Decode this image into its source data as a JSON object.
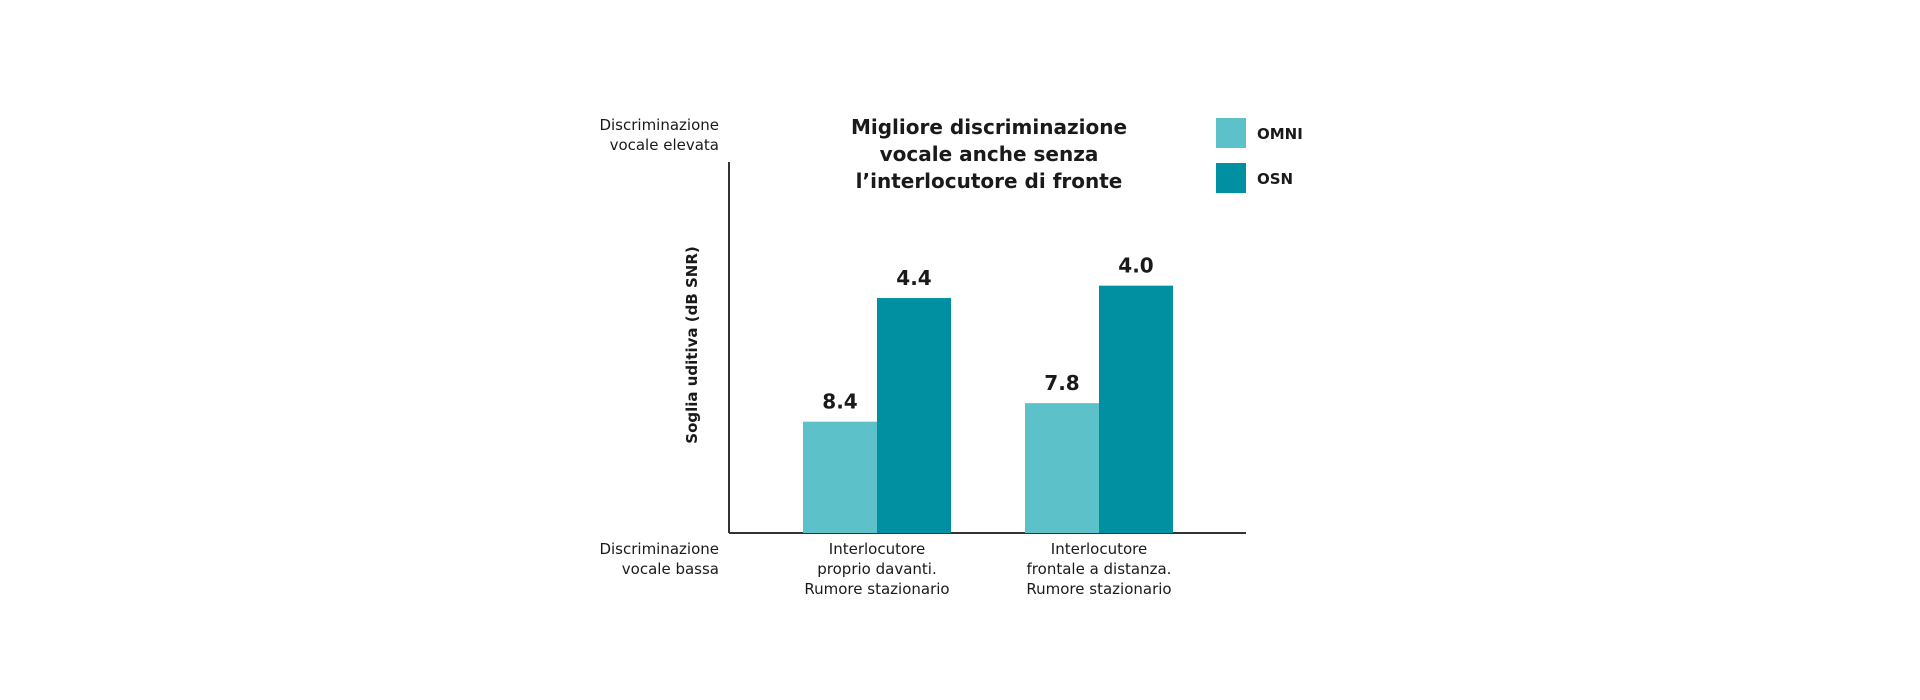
{
  "chart_data": {
    "type": "bar",
    "title_lines": [
      "Migliore discriminazione",
      "vocale anche senza",
      "l’interlocutore di fronte"
    ],
    "ylabel": "Soglia uditiva (dB SNR)",
    "y_top_label": [
      "Discriminazione",
      "vocale elevata"
    ],
    "y_bottom_label": [
      "Discriminazione",
      "vocale bassa"
    ],
    "y_axis_reversed": true,
    "ylim": [
      12,
      0
    ],
    "categories": [
      [
        "Interlocutore",
        "proprio davanti.",
        "Rumore stazionario"
      ],
      [
        "Interlocutore",
        "frontale a distanza.",
        "Rumore stazionario"
      ]
    ],
    "series": [
      {
        "name": "OMNI",
        "color": "#5cc1c8",
        "values": [
          8.4,
          7.8
        ],
        "value_labels": [
          "8.4",
          "7.8"
        ]
      },
      {
        "name": "OSN",
        "color": "#0090a1",
        "values": [
          4.4,
          4.0
        ],
        "value_labels": [
          "4.4",
          "4.0"
        ]
      }
    ],
    "legend_position": "top-right",
    "grid": false,
    "axis_color": "#333333"
  }
}
